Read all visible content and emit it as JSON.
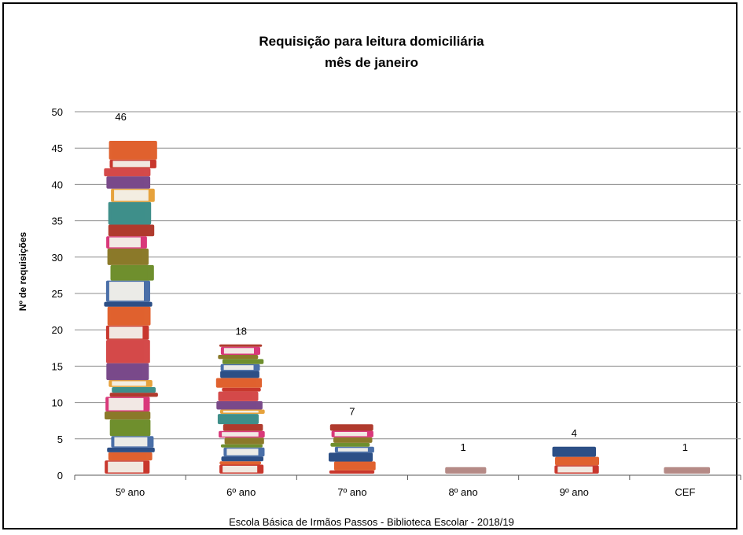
{
  "chart_data": {
    "type": "bar",
    "title": "Requisição para leitura domiciliária",
    "subtitle": "mês de janeiro",
    "xlabel": "",
    "ylabel": "Nº de requisições",
    "categories": [
      "5º ano",
      "6º ano",
      "7º ano",
      "8º ano",
      "9º ano",
      "CEF"
    ],
    "values": [
      46,
      18,
      7,
      1,
      4,
      1
    ],
    "data_labels": [
      "46",
      "18",
      "7",
      "1",
      "4",
      "1"
    ],
    "ylim": [
      0,
      50
    ],
    "yticks": [
      0,
      5,
      10,
      15,
      20,
      25,
      30,
      35,
      40,
      45,
      50
    ],
    "grid": true,
    "bar_style": "stacked books pictograph"
  },
  "footer": "Escola Básica de Irmãos Passos - Biblioteca Escolar  - 2018/19",
  "colors": {
    "book_palette": [
      "#c8372d",
      "#e0622f",
      "#2c4f86",
      "#4a6fa8",
      "#6f8f2e",
      "#8b7a2a",
      "#d9387a",
      "#b03b2e",
      "#3f8f8a",
      "#e6a23c",
      "#7a4a8a",
      "#d44a4a"
    ],
    "pages": "#f3f1ea",
    "gridline": "#8c8c8c"
  }
}
